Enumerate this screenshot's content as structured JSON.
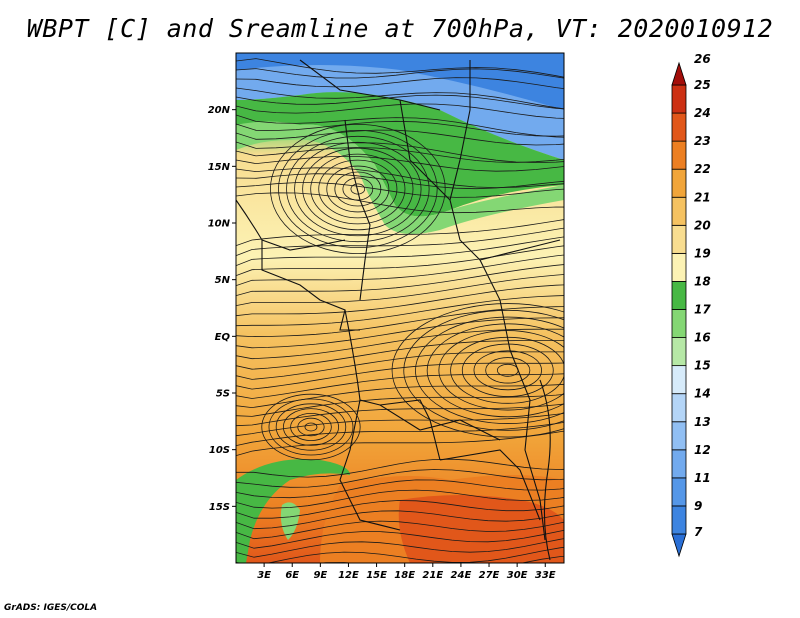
{
  "title": "WBPT [C] and Sreamline at 700hPa, VT: 2020010912",
  "credit": "GrADS: IGES/COLA",
  "map": {
    "lon_range": [
      0,
      35
    ],
    "lat_range": [
      -20,
      25
    ],
    "lat_ticks": [
      {
        "value": 20,
        "label": "20N"
      },
      {
        "value": 15,
        "label": "15N"
      },
      {
        "value": 10,
        "label": "10N"
      },
      {
        "value": 5,
        "label": "5N"
      },
      {
        "value": 0,
        "label": "EQ"
      },
      {
        "value": -5,
        "label": "5S"
      },
      {
        "value": -10,
        "label": "10S"
      },
      {
        "value": -15,
        "label": "15S"
      }
    ],
    "lon_ticks": [
      {
        "value": 3,
        "label": "3E"
      },
      {
        "value": 6,
        "label": "6E"
      },
      {
        "value": 9,
        "label": "9E"
      },
      {
        "value": 12,
        "label": "12E"
      },
      {
        "value": 15,
        "label": "15E"
      },
      {
        "value": 18,
        "label": "18E"
      },
      {
        "value": 21,
        "label": "21E"
      },
      {
        "value": 24,
        "label": "24E"
      },
      {
        "value": 27,
        "label": "27E"
      },
      {
        "value": 30,
        "label": "30E"
      },
      {
        "value": 33,
        "label": "33E"
      }
    ]
  },
  "colorbar": {
    "labels": [
      "7",
      "9",
      "11",
      "12",
      "13",
      "14",
      "15",
      "16",
      "17",
      "18",
      "19",
      "20",
      "21",
      "22",
      "23",
      "24",
      "25",
      "26"
    ],
    "colors": [
      "#2a6fd6",
      "#3d84e0",
      "#5597e8",
      "#72aaee",
      "#91bff3",
      "#b4d5f7",
      "#d7ebfa",
      "#b6e8a6",
      "#84d774",
      "#47b844",
      "#fcf2b4",
      "#f8dd90",
      "#f5c261",
      "#f1a53a",
      "#ec7f22",
      "#e1571a",
      "#cc3013",
      "#a30e0a"
    ]
  }
}
